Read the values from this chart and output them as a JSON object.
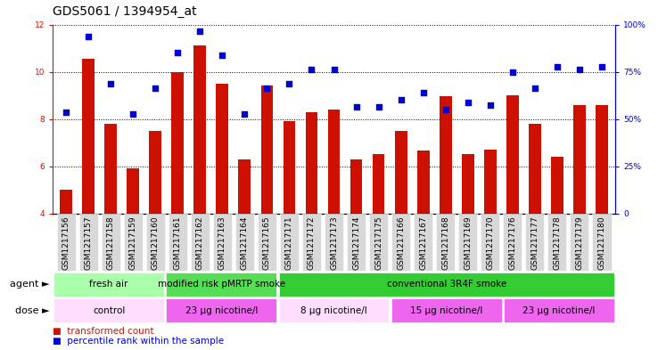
{
  "title": "GDS5061 / 1394954_at",
  "samples": [
    "GSM1217156",
    "GSM1217157",
    "GSM1217158",
    "GSM1217159",
    "GSM1217160",
    "GSM1217161",
    "GSM1217162",
    "GSM1217163",
    "GSM1217164",
    "GSM1217165",
    "GSM1217171",
    "GSM1217172",
    "GSM1217173",
    "GSM1217174",
    "GSM1217175",
    "GSM1217166",
    "GSM1217167",
    "GSM1217168",
    "GSM1217169",
    "GSM1217170",
    "GSM1217176",
    "GSM1217177",
    "GSM1217178",
    "GSM1217179",
    "GSM1217180"
  ],
  "bar_values": [
    5.0,
    10.55,
    7.8,
    5.9,
    7.5,
    10.0,
    11.1,
    9.5,
    6.3,
    9.4,
    7.9,
    8.3,
    8.4,
    6.3,
    6.5,
    7.5,
    6.65,
    8.95,
    6.5,
    6.7,
    9.0,
    7.8,
    6.4,
    8.6,
    8.6
  ],
  "dot_values": [
    8.3,
    11.5,
    9.5,
    8.2,
    9.3,
    10.8,
    11.7,
    10.7,
    8.2,
    9.3,
    9.5,
    10.1,
    10.1,
    8.5,
    8.5,
    8.8,
    9.1,
    8.4,
    8.7,
    8.6,
    10.0,
    9.3,
    10.2,
    10.1,
    10.2
  ],
  "ymin": 4,
  "ymax": 12,
  "yticks_left": [
    4,
    6,
    8,
    10,
    12
  ],
  "yticks_right": [
    0,
    25,
    50,
    75,
    100
  ],
  "bar_color": "#cc1100",
  "dot_color": "#0000cc",
  "tick_bg_color": "#d8d8d8",
  "agent_groups": [
    {
      "label": "fresh air",
      "start": 0,
      "end": 5,
      "color": "#aaffaa"
    },
    {
      "label": "modified risk pMRTP smoke",
      "start": 5,
      "end": 10,
      "color": "#55dd55"
    },
    {
      "label": "conventional 3R4F smoke",
      "start": 10,
      "end": 25,
      "color": "#33cc33"
    }
  ],
  "dose_groups": [
    {
      "label": "control",
      "start": 0,
      "end": 5,
      "color": "#ffddff"
    },
    {
      "label": "23 μg nicotine/l",
      "start": 5,
      "end": 10,
      "color": "#ee66ee"
    },
    {
      "label": "8 μg nicotine/l",
      "start": 10,
      "end": 15,
      "color": "#ffddff"
    },
    {
      "label": "15 μg nicotine/l",
      "start": 15,
      "end": 20,
      "color": "#ee66ee"
    },
    {
      "label": "23 μg nicotine/l",
      "start": 20,
      "end": 25,
      "color": "#ee66ee"
    }
  ],
  "legend_bar_label": "transformed count",
  "legend_dot_label": "percentile rank within the sample",
  "title_fontsize": 10,
  "tick_fontsize": 6.5,
  "annot_fontsize": 7.5,
  "row_label_fontsize": 8
}
